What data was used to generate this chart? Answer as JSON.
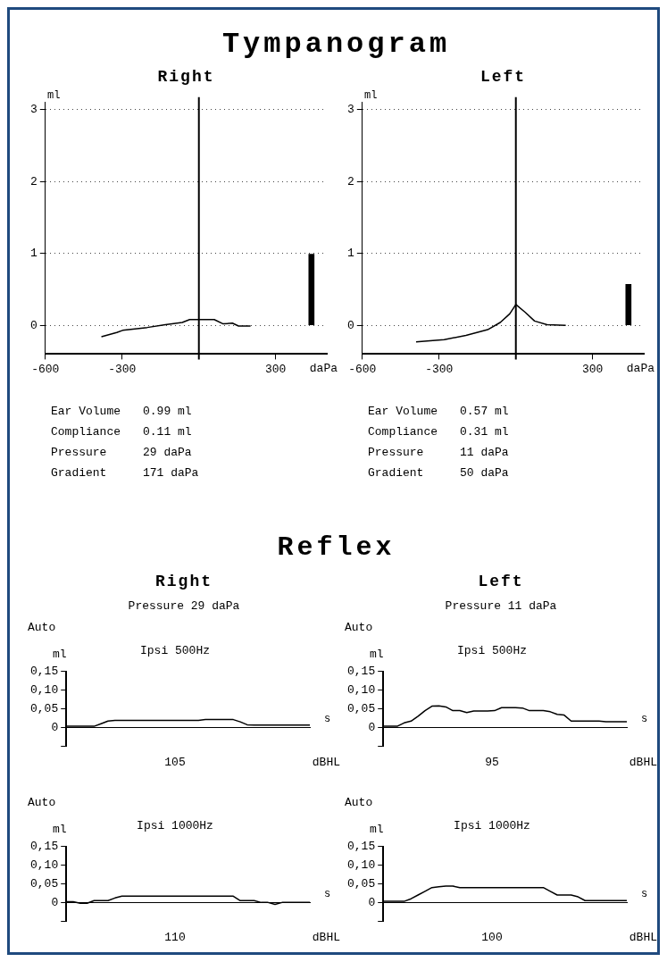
{
  "chart_data": [
    {
      "type": "line",
      "title": "Tympanogram",
      "subtitle": "Right",
      "xlabel": "daPa",
      "ylabel": "ml",
      "xlim": [
        -600,
        500
      ],
      "ylim": [
        -0.4,
        3.1
      ],
      "xticks": [
        -600,
        -300,
        300
      ],
      "ref_lines": [
        {
          "axis": "x",
          "value": 0
        }
      ],
      "yticks": [
        0,
        1,
        2,
        3
      ],
      "grid": "y",
      "series": [
        {
          "color": "#000000",
          "x": [
            -381,
            -321,
            -298,
            -202,
            -131,
            -65,
            -36,
            60,
            95,
            131,
            155,
            202
          ],
          "values": [
            -0.16,
            -0.1,
            -0.07,
            -0.03,
            0.01,
            0.04,
            0.08,
            0.08,
            0.02,
            0.03,
            -0.01,
            -0.01
          ]
        },
        {
          "type": "bar",
          "color": "#000000",
          "x": [
            440
          ],
          "values": [
            0.99
          ]
        }
      ],
      "annotations": [
        "Ear Volume",
        "0.99 ml",
        "Compliance",
        "0.11 ml",
        "Pressure",
        "29 daPa",
        "Gradient",
        "171 daPa"
      ]
    },
    {
      "type": "line",
      "subtitle": "Left",
      "xlabel": "daPa",
      "ylabel": "ml",
      "xlim": [
        -600,
        500
      ],
      "ylim": [
        -0.4,
        3.1
      ],
      "xticks": [
        -600,
        -300,
        300
      ],
      "ref_lines": [
        {
          "axis": "x",
          "value": 0
        }
      ],
      "yticks": [
        0,
        1,
        2,
        3
      ],
      "grid": "y",
      "series": [
        {
          "color": "#000000",
          "x": [
            -390,
            -280,
            -195,
            -110,
            -61,
            -24,
            0,
            37,
            73,
            122,
            195
          ],
          "values": [
            -0.23,
            -0.2,
            -0.14,
            -0.06,
            0.04,
            0.16,
            0.29,
            0.18,
            0.06,
            0.01,
            0
          ]
        },
        {
          "type": "bar",
          "color": "#000000",
          "x": [
            440
          ],
          "values": [
            0.57
          ]
        }
      ],
      "annotations": [
        "Ear Volume",
        "0.57 ml",
        "Compliance",
        "0.31 ml",
        "Pressure",
        "11 daPa",
        "Gradient",
        "50 daPa"
      ]
    },
    {
      "type": "line",
      "title": "Reflex",
      "subtitle": "Right",
      "xlabel": "s",
      "ylabel": "ml",
      "ylim": [
        -0.05,
        0.15
      ],
      "yticks": [
        {
          "value": -0.05,
          "label": null
        },
        0,
        {
          "value": 0.05,
          "label": "0,05"
        },
        {
          "value": 0.1,
          "label": "0,10"
        },
        {
          "value": 0.15,
          "label": "0,15"
        }
      ],
      "categories": [
        null,
        null,
        null,
        null,
        null,
        null,
        null,
        null,
        null,
        null,
        null,
        null,
        null,
        null,
        null,
        null,
        null,
        null,
        null,
        null,
        null,
        null,
        null,
        null,
        null,
        null,
        null,
        null,
        null,
        null,
        null,
        null,
        null,
        null,
        null,
        null
      ],
      "series": [
        {
          "color": "#000000",
          "values": [
            0.003,
            0.003,
            0.003,
            0.003,
            0.003,
            0.01,
            0.017,
            0.019,
            0.019,
            0.019,
            0.019,
            0.019,
            0.019,
            0.019,
            0.019,
            0.019,
            0.019,
            0.019,
            0.019,
            0.019,
            0.021,
            0.021,
            0.021,
            0.021,
            0.021,
            0.015,
            0.007,
            0.006,
            0.006,
            0.006,
            0.006,
            0.006,
            0.006,
            0.006,
            0.006,
            0.006
          ]
        }
      ],
      "annotations": [
        "Pressure 29 daPa",
        "Auto",
        "Ipsi 500Hz",
        "105",
        "dBHL"
      ]
    },
    {
      "type": "line",
      "subtitle": "Left",
      "xlabel": "s",
      "ylabel": "ml",
      "ylim": [
        -0.05,
        0.15
      ],
      "yticks": [
        {
          "value": -0.05,
          "label": null
        },
        0,
        {
          "value": 0.05,
          "label": "0,05"
        },
        {
          "value": 0.1,
          "label": "0,10"
        },
        {
          "value": 0.15,
          "label": "0,15"
        }
      ],
      "categories": [
        null,
        null,
        null,
        null,
        null,
        null,
        null,
        null,
        null,
        null,
        null,
        null,
        null,
        null,
        null,
        null,
        null,
        null,
        null,
        null,
        null,
        null,
        null,
        null,
        null,
        null,
        null,
        null,
        null,
        null,
        null,
        null,
        null,
        null,
        null,
        null
      ],
      "series": [
        {
          "color": "#000000",
          "values": [
            0.003,
            0.003,
            0.003,
            0.012,
            0.017,
            0.03,
            0.045,
            0.057,
            0.058,
            0.055,
            0.045,
            0.045,
            0.04,
            0.044,
            0.044,
            0.044,
            0.045,
            0.053,
            0.053,
            0.053,
            0.052,
            0.045,
            0.045,
            0.045,
            0.042,
            0.035,
            0.033,
            0.017,
            0.017,
            0.017,
            0.017,
            0.017,
            0.015,
            0.015,
            0.015,
            0.015
          ]
        }
      ],
      "annotations": [
        "Pressure 11 daPa",
        "Auto",
        "Ipsi 500Hz",
        "95",
        "dBHL"
      ]
    },
    {
      "type": "line",
      "xlabel": "s",
      "ylabel": "ml",
      "ylim": [
        -0.05,
        0.15
      ],
      "yticks": [
        {
          "value": -0.05,
          "label": null
        },
        0,
        {
          "value": 0.05,
          "label": "0,05"
        },
        {
          "value": 0.1,
          "label": "0,10"
        },
        {
          "value": 0.15,
          "label": "0,15"
        }
      ],
      "categories": [
        null,
        null,
        null,
        null,
        null,
        null,
        null,
        null,
        null,
        null,
        null,
        null,
        null,
        null,
        null,
        null,
        null,
        null,
        null,
        null,
        null,
        null,
        null,
        null,
        null,
        null,
        null,
        null,
        null,
        null,
        null,
        null,
        null,
        null,
        null,
        null
      ],
      "series": [
        {
          "color": "#000000",
          "values": [
            0.002,
            0.002,
            -0.002,
            -0.002,
            0.005,
            0.005,
            0.005,
            0.012,
            0.017,
            0.017,
            0.017,
            0.017,
            0.017,
            0.017,
            0.017,
            0.017,
            0.017,
            0.017,
            0.017,
            0.017,
            0.017,
            0.017,
            0.017,
            0.017,
            0.017,
            0.005,
            0.005,
            0.005,
            0,
            0,
            -0.005,
            0,
            0,
            0,
            0,
            0
          ]
        }
      ],
      "annotations": [
        "Auto",
        "Ipsi 1000Hz",
        "110",
        "dBHL"
      ]
    },
    {
      "type": "line",
      "xlabel": "s",
      "ylabel": "ml",
      "ylim": [
        -0.05,
        0.15
      ],
      "yticks": [
        {
          "value": -0.05,
          "label": null
        },
        0,
        {
          "value": 0.05,
          "label": "0,05"
        },
        {
          "value": 0.1,
          "label": "0,10"
        },
        {
          "value": 0.15,
          "label": "0,15"
        }
      ],
      "categories": [
        null,
        null,
        null,
        null,
        null,
        null,
        null,
        null,
        null,
        null,
        null,
        null,
        null,
        null,
        null,
        null,
        null,
        null,
        null,
        null,
        null,
        null,
        null,
        null,
        null,
        null,
        null,
        null,
        null,
        null,
        null,
        null,
        null,
        null,
        null,
        null
      ],
      "series": [
        {
          "color": "#000000",
          "values": [
            0.003,
            0.003,
            0.003,
            0.003,
            0.01,
            0.02,
            0.03,
            0.04,
            0.042,
            0.044,
            0.044,
            0.04,
            0.04,
            0.04,
            0.04,
            0.04,
            0.04,
            0.04,
            0.04,
            0.04,
            0.04,
            0.04,
            0.04,
            0.04,
            0.03,
            0.02,
            0.02,
            0.02,
            0.015,
            0.005,
            0.005,
            0.005,
            0.005,
            0.005,
            0.005,
            0.005
          ]
        }
      ],
      "annotations": [
        "Auto",
        "Ipsi 1000Hz",
        "100",
        "dBHL"
      ]
    }
  ]
}
